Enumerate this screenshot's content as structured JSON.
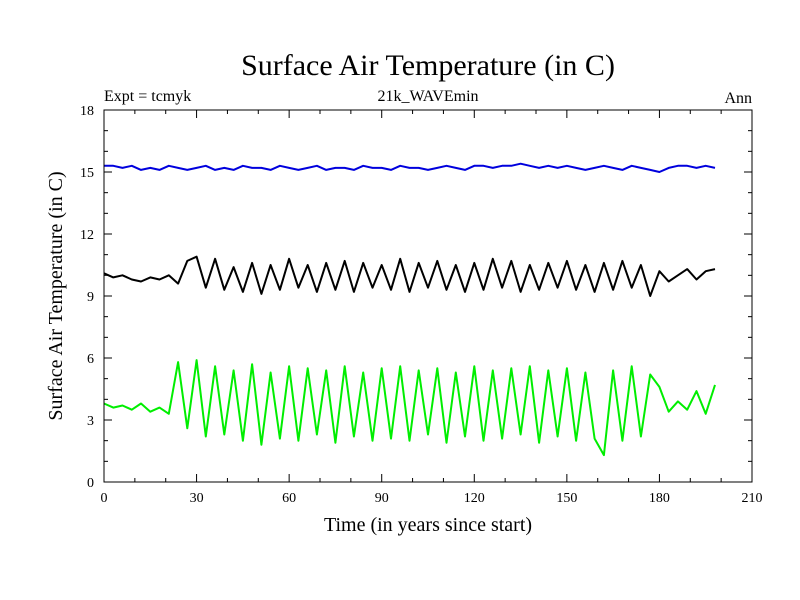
{
  "chart_data": {
    "type": "line",
    "title": "Surface Air Temperature (in C)",
    "subtitle_left": "Expt = tcmyk",
    "subtitle_center": "21k_WAVEmin",
    "subtitle_right": "Ann",
    "xlabel": "Time (in years since start)",
    "ylabel": "Surface Air Temperature (in C)",
    "xlim": [
      0,
      210
    ],
    "ylim": [
      0,
      18
    ],
    "xticks": [
      0,
      30,
      60,
      90,
      120,
      150,
      180,
      210
    ],
    "yticks": [
      0,
      3,
      6,
      9,
      12,
      15,
      18
    ],
    "xtick_labels": [
      "0",
      "30",
      "60",
      "90",
      "120",
      "150",
      "180",
      "210"
    ],
    "ytick_labels": [
      "0",
      "3",
      "6",
      "9",
      "12",
      "15",
      "18"
    ],
    "series": [
      {
        "name": "blue",
        "color": "#0000dd",
        "x": [
          0,
          3,
          6,
          9,
          12,
          15,
          18,
          21,
          24,
          27,
          30,
          33,
          36,
          39,
          42,
          45,
          48,
          51,
          54,
          57,
          60,
          63,
          66,
          69,
          72,
          75,
          78,
          81,
          84,
          87,
          90,
          93,
          96,
          99,
          102,
          105,
          108,
          111,
          114,
          117,
          120,
          123,
          126,
          129,
          132,
          135,
          138,
          141,
          144,
          147,
          150,
          153,
          156,
          159,
          162,
          165,
          168,
          171,
          174,
          177,
          180,
          183,
          186,
          189,
          192,
          195,
          198
        ],
        "values": [
          15.3,
          15.3,
          15.2,
          15.3,
          15.1,
          15.2,
          15.1,
          15.3,
          15.2,
          15.1,
          15.2,
          15.3,
          15.1,
          15.2,
          15.1,
          15.3,
          15.2,
          15.2,
          15.1,
          15.3,
          15.2,
          15.1,
          15.2,
          15.3,
          15.1,
          15.2,
          15.2,
          15.1,
          15.3,
          15.2,
          15.2,
          15.1,
          15.3,
          15.2,
          15.2,
          15.1,
          15.2,
          15.3,
          15.2,
          15.1,
          15.3,
          15.3,
          15.2,
          15.3,
          15.3,
          15.4,
          15.3,
          15.2,
          15.3,
          15.2,
          15.3,
          15.2,
          15.1,
          15.2,
          15.3,
          15.2,
          15.1,
          15.3,
          15.2,
          15.1,
          15.0,
          15.2,
          15.3,
          15.3,
          15.2,
          15.3,
          15.2
        ]
      },
      {
        "name": "black",
        "color": "#000000",
        "x": [
          0,
          3,
          6,
          9,
          12,
          15,
          18,
          21,
          24,
          27,
          30,
          33,
          36,
          39,
          42,
          45,
          48,
          51,
          54,
          57,
          60,
          63,
          66,
          69,
          72,
          75,
          78,
          81,
          84,
          87,
          90,
          93,
          96,
          99,
          102,
          105,
          108,
          111,
          114,
          117,
          120,
          123,
          126,
          129,
          132,
          135,
          138,
          141,
          144,
          147,
          150,
          153,
          156,
          159,
          162,
          165,
          168,
          171,
          174,
          177,
          180,
          183,
          186,
          189,
          192,
          195,
          198
        ],
        "values": [
          10.1,
          9.9,
          10.0,
          9.8,
          9.7,
          9.9,
          9.8,
          10.0,
          9.6,
          10.7,
          10.9,
          9.4,
          10.8,
          9.3,
          10.4,
          9.2,
          10.6,
          9.1,
          10.5,
          9.3,
          10.8,
          9.4,
          10.5,
          9.2,
          10.6,
          9.3,
          10.7,
          9.2,
          10.6,
          9.4,
          10.5,
          9.3,
          10.8,
          9.2,
          10.6,
          9.4,
          10.7,
          9.3,
          10.5,
          9.2,
          10.6,
          9.3,
          10.8,
          9.4,
          10.7,
          9.2,
          10.5,
          9.3,
          10.6,
          9.4,
          10.7,
          9.3,
          10.5,
          9.2,
          10.6,
          9.3,
          10.7,
          9.4,
          10.5,
          9.0,
          10.2,
          9.7,
          10.0,
          10.3,
          9.8,
          10.2,
          10.3
        ]
      },
      {
        "name": "green",
        "color": "#00ee00",
        "x": [
          0,
          3,
          6,
          9,
          12,
          15,
          18,
          21,
          24,
          27,
          30,
          33,
          36,
          39,
          42,
          45,
          48,
          51,
          54,
          57,
          60,
          63,
          66,
          69,
          72,
          75,
          78,
          81,
          84,
          87,
          90,
          93,
          96,
          99,
          102,
          105,
          108,
          111,
          114,
          117,
          120,
          123,
          126,
          129,
          132,
          135,
          138,
          141,
          144,
          147,
          150,
          153,
          156,
          159,
          162,
          165,
          168,
          171,
          174,
          177,
          180,
          183,
          186,
          189,
          192,
          195,
          198
        ],
        "values": [
          3.8,
          3.6,
          3.7,
          3.5,
          3.8,
          3.4,
          3.6,
          3.3,
          5.8,
          2.6,
          5.9,
          2.2,
          5.6,
          2.3,
          5.4,
          2.0,
          5.7,
          1.8,
          5.3,
          2.1,
          5.6,
          2.0,
          5.5,
          2.3,
          5.4,
          1.9,
          5.6,
          2.2,
          5.3,
          2.0,
          5.5,
          2.1,
          5.6,
          2.0,
          5.4,
          2.3,
          5.5,
          1.9,
          5.3,
          2.2,
          5.6,
          2.0,
          5.4,
          2.1,
          5.5,
          2.3,
          5.6,
          1.9,
          5.4,
          2.2,
          5.5,
          2.0,
          5.3,
          2.1,
          1.3,
          5.4,
          2.0,
          5.6,
          2.2,
          5.2,
          4.6,
          3.4,
          3.9,
          3.5,
          4.4,
          3.3,
          4.7
        ]
      }
    ]
  }
}
